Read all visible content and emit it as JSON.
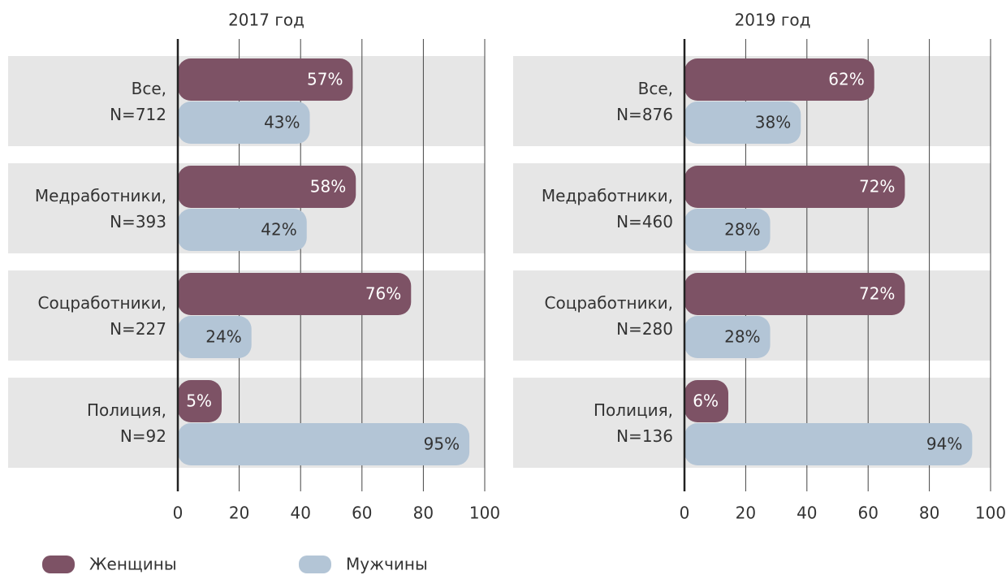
{
  "chart_data": [
    {
      "type": "hbar",
      "title": "2017 год",
      "categories": [
        "Все,\nN=712",
        "Медработники,\nN=393",
        "Соцработники,\nN=227",
        "Полиция,\nN=92"
      ],
      "series": [
        {
          "name": "Женщины",
          "color": "#7d5265",
          "values": [
            57,
            58,
            76,
            5
          ],
          "value_labels": [
            "57%",
            "58%",
            "76%",
            "5%"
          ]
        },
        {
          "name": "Мужчины",
          "color": "#b3c5d6",
          "values": [
            43,
            42,
            24,
            95
          ],
          "value_labels": [
            "43%",
            "42%",
            "24%",
            "95%"
          ]
        }
      ],
      "xlim": [
        0,
        100
      ],
      "xticks": [
        0,
        20,
        40,
        60,
        80,
        100
      ],
      "grid": true
    },
    {
      "type": "hbar",
      "title": "2019 год",
      "categories": [
        "Все,\nN=876",
        "Медработники,\nN=460",
        "Соцработники,\nN=280",
        "Полиция,\nN=136"
      ],
      "series": [
        {
          "color": "#7d5265",
          "values": [
            62,
            72,
            72,
            6
          ],
          "value_labels": [
            "62%",
            "72%",
            "72%",
            "6%"
          ]
        },
        {
          "color": "#b3c5d6",
          "values": [
            38,
            28,
            28,
            94
          ],
          "value_labels": [
            "38%",
            "28%",
            "28%",
            "94%"
          ]
        }
      ],
      "xlim": [
        0,
        100
      ],
      "xticks": [
        0,
        20,
        40,
        60,
        80,
        100
      ],
      "grid": true
    }
  ]
}
